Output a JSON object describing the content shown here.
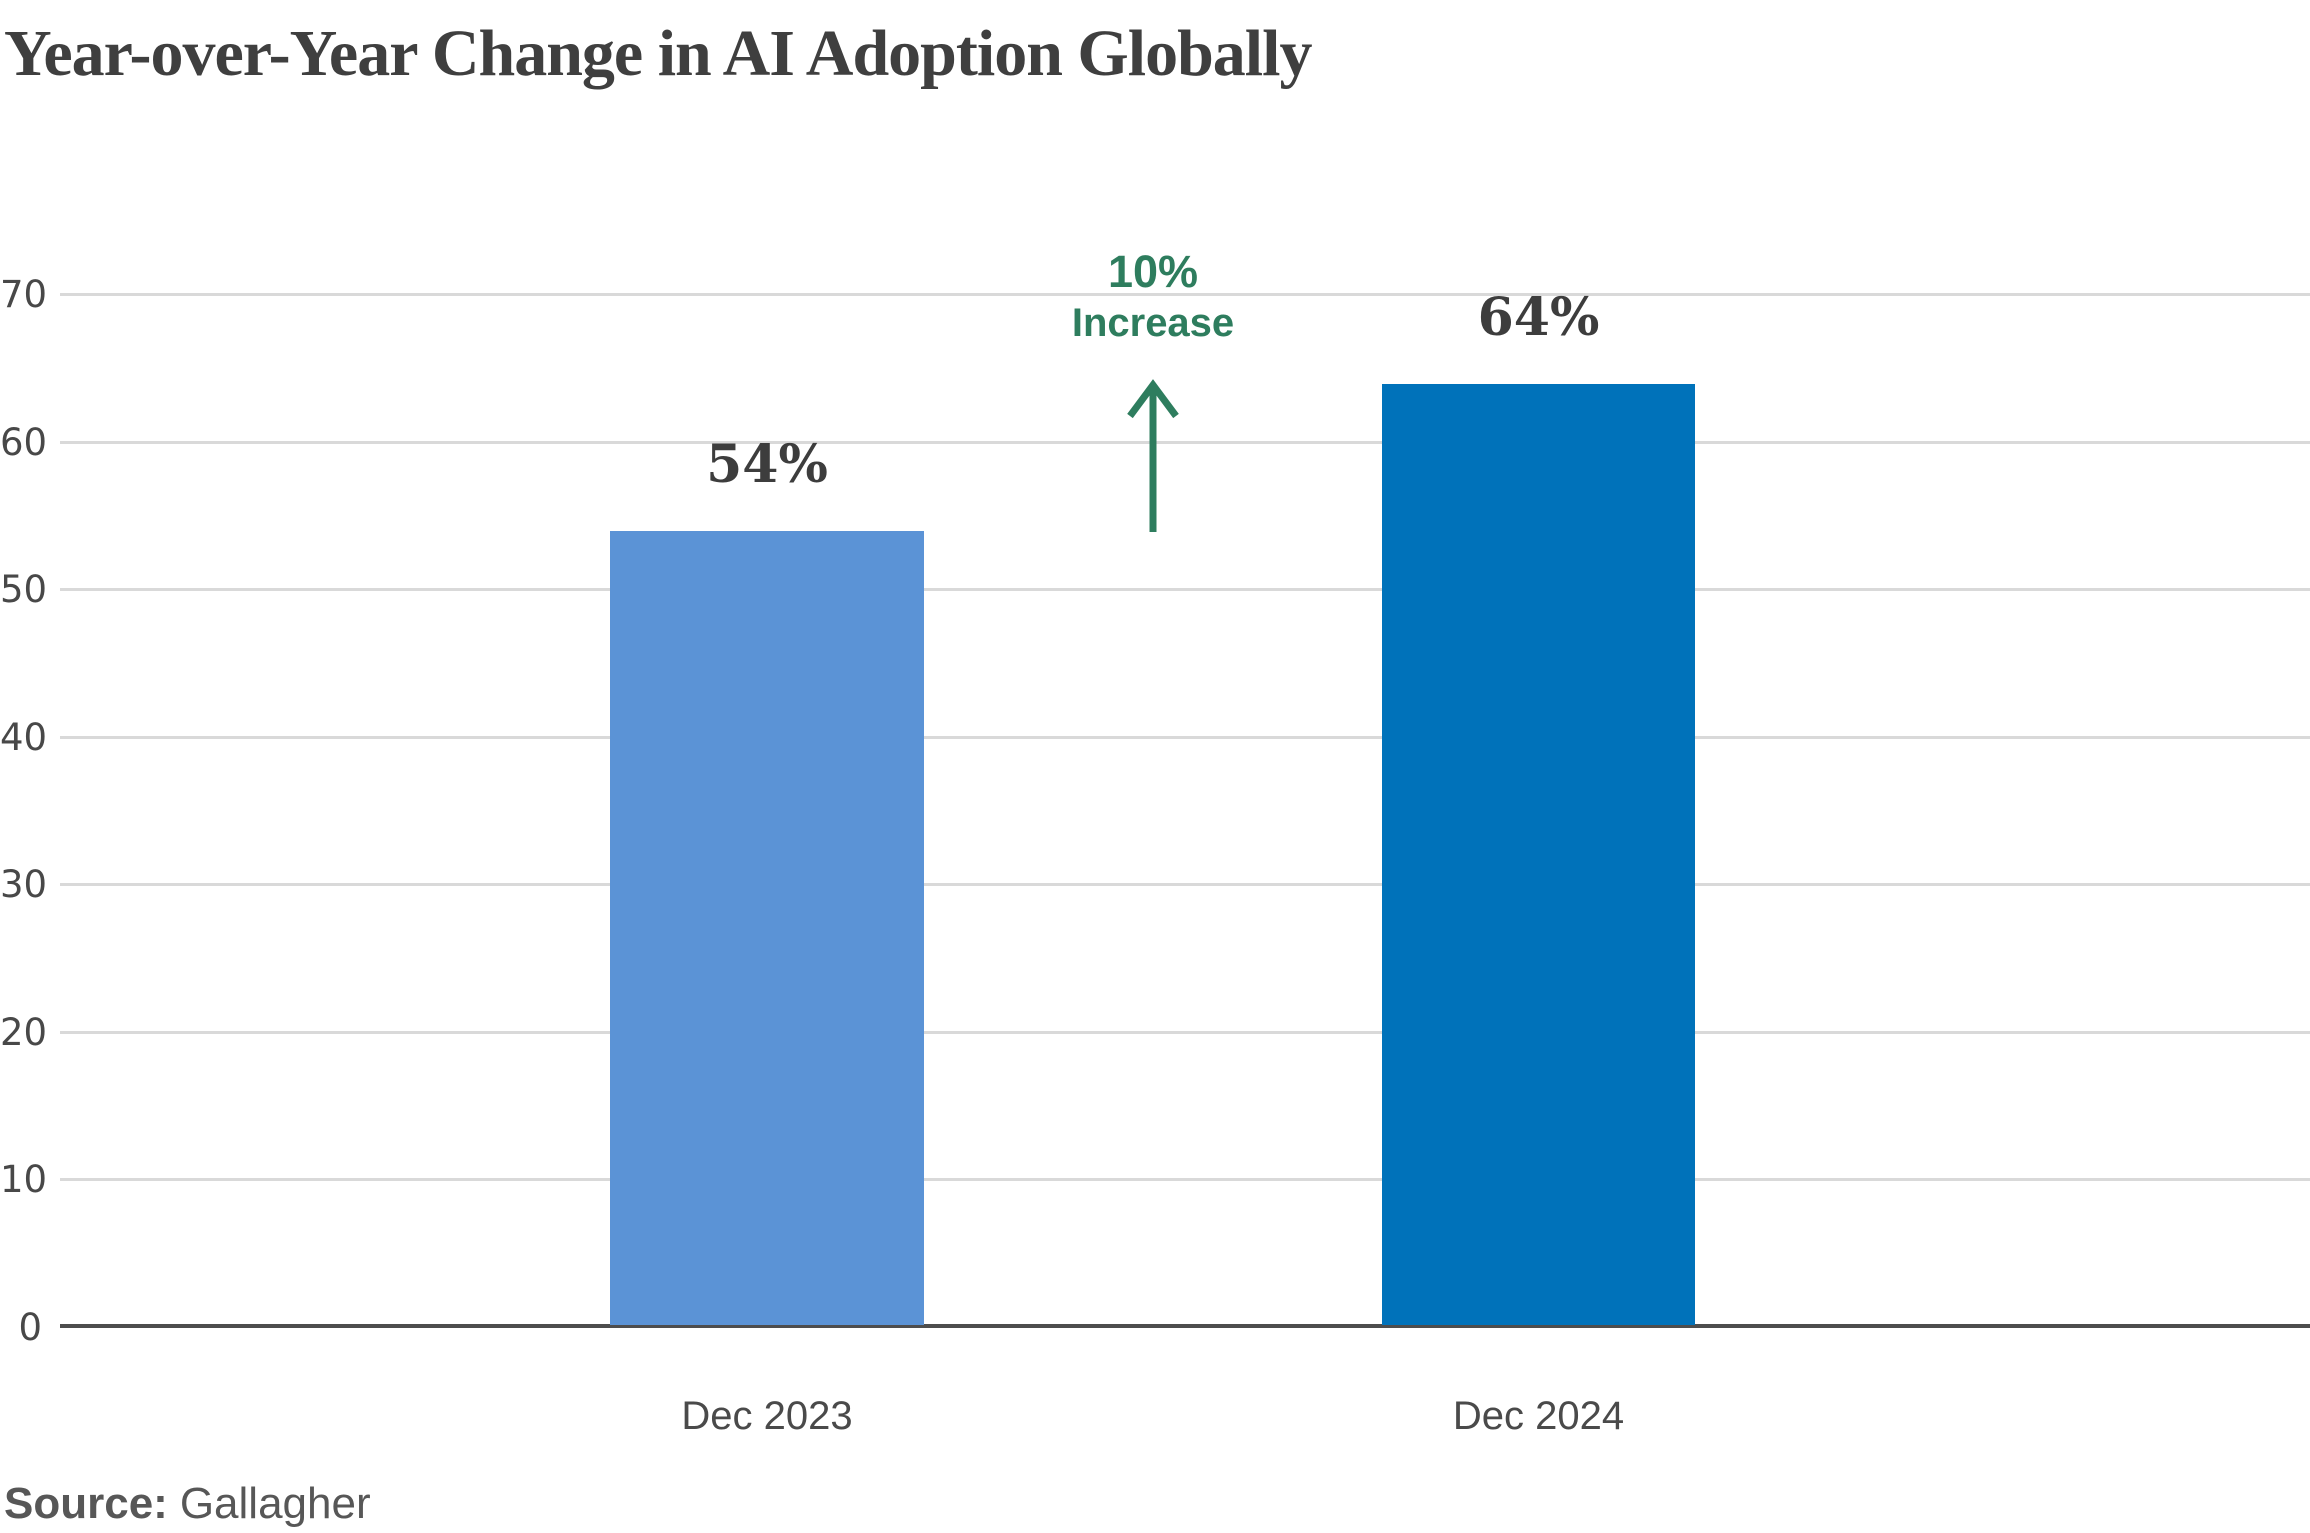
{
  "chart_data": {
    "type": "bar",
    "title": "Year-over-Year Change in AI Adoption Globally",
    "categories": [
      "Dec 2023",
      "Dec 2024"
    ],
    "values": [
      54,
      64
    ],
    "value_labels": [
      "54%",
      "64%"
    ],
    "series": [
      {
        "name": "Dec 2023",
        "value": 54,
        "color": "#5b93d6"
      },
      {
        "name": "Dec 2024",
        "value": 64,
        "color": "#0072ba"
      }
    ],
    "bar_colors": [
      "#5b93d6",
      "#0072ba"
    ],
    "ylim": [
      0,
      70
    ],
    "yticks": [
      0,
      10,
      20,
      30,
      40,
      50,
      60,
      70
    ],
    "grid": "horizontal",
    "legend": "none",
    "annotation": {
      "line1": "10%",
      "line2": "Increase",
      "color": "#2e7d5e",
      "arrow": "up"
    },
    "axis_line_color": "#4d4d4d",
    "gridline_color": "#d9d9d9",
    "title_color": "#3f3f3f"
  },
  "source": {
    "label": "Source:",
    "value": "Gallagher"
  }
}
